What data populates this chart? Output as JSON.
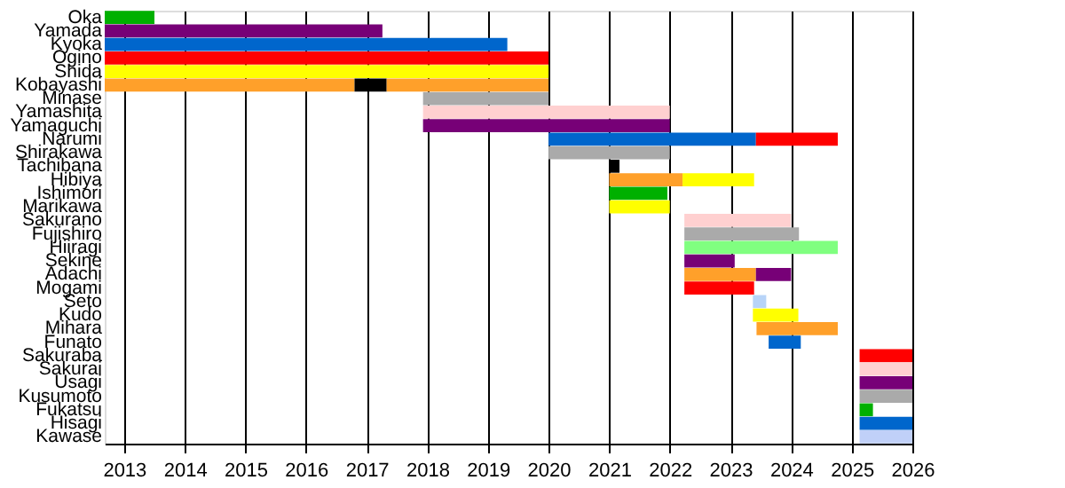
{
  "chart_data": {
    "type": "bar",
    "orientation": "horizontal",
    "categories": [
      "Oka",
      "Yamada",
      "Kyoka",
      "Ogino",
      "Shida",
      "Kobayashi",
      "Minase",
      "Yamashita",
      "Yamaguchi",
      "Narumi",
      "Shirakawa",
      "Tachibana",
      "Hibiya",
      "Ishimori",
      "Marikawa",
      "Sakurano",
      "Fujishiro",
      "Hiiragi",
      "Sekine",
      "Adachi",
      "Mogami",
      "Seto",
      "Kudo",
      "Mihara",
      "Funato",
      "Sakuraba",
      "Sakurai",
      "Usagi",
      "Kusumoto",
      "Fukatsu",
      "Hisagi",
      "Kawase"
    ],
    "series": [
      {
        "base": [
          2012.68,
          2012.68,
          2012.68,
          2012.68,
          2012.68,
          2012.68,
          2017.93,
          2017.93,
          2017.93,
          2020,
          2020,
          2021,
          2021,
          2021,
          2021,
          2022.24,
          2022.24,
          2022.24,
          2022.24,
          2022.24,
          2022.24,
          2023.37,
          2023.37,
          2023.43,
          2023.63,
          2025.13,
          2025.13,
          2025.13,
          2025.13,
          2025.13,
          2025.13,
          2025.13
        ],
        "values": [
          0.82,
          4.58,
          6.64,
          7.32,
          7.32,
          4.12,
          2.07,
          4.07,
          4.07,
          3.42,
          2,
          0.17,
          1.21,
          0.96,
          1,
          1.76,
          1.89,
          2.53,
          0.83,
          1.18,
          1.15,
          0.22,
          0.75,
          1.34,
          0.53,
          0.87,
          0.87,
          0.87,
          0.87,
          0.22,
          0.87,
          0.87
        ],
        "colors": [
          "#00b000",
          "#770077",
          "#0066cc",
          "#ff0000",
          "#ffff00",
          "#ffa02a",
          "#aaaaaa",
          "#ffd0d0",
          "#770077",
          "#0066cc",
          "#aaaaaa",
          "#000000",
          "#ffa02a",
          "#00b000",
          "#ffff00",
          "#ffd0d0",
          "#aaaaaa",
          "#80ff80",
          "#770077",
          "#ffa02a",
          "#ff0000",
          "#b8d4f8",
          "#ffff00",
          "#ffa02a",
          "#0066cc",
          "#ff0000",
          "#ffd0d0",
          "#770077",
          "#aaaaaa",
          "#00b000",
          "#0066cc",
          "#c0d0f8"
        ]
      },
      {
        "base": [
          null,
          null,
          null,
          null,
          null,
          2016.8,
          null,
          null,
          null,
          2023.42,
          null,
          null,
          2022.21,
          null,
          null,
          null,
          null,
          null,
          null,
          2023.42,
          null,
          null,
          null,
          null,
          null,
          null,
          null,
          null,
          null,
          null,
          null,
          null
        ],
        "values": [
          null,
          null,
          null,
          null,
          null,
          0.53,
          null,
          null,
          null,
          1.35,
          null,
          null,
          1.18,
          null,
          null,
          null,
          null,
          null,
          null,
          0.58,
          null,
          null,
          null,
          null,
          null,
          null,
          null,
          null,
          null,
          null,
          null,
          null
        ],
        "colors": [
          null,
          null,
          null,
          null,
          null,
          "#000000",
          null,
          null,
          null,
          "#ff0000",
          null,
          null,
          "#ffff00",
          null,
          null,
          null,
          null,
          null,
          null,
          "#770077",
          null,
          null,
          null,
          null,
          null,
          null,
          null,
          null,
          null,
          null,
          null,
          null
        ]
      },
      {
        "base": [
          null,
          null,
          null,
          null,
          null,
          2017.33,
          null,
          null,
          null,
          null,
          null,
          null,
          null,
          null,
          null,
          null,
          null,
          null,
          null,
          null,
          null,
          null,
          null,
          null,
          null,
          null,
          null,
          null,
          null,
          null,
          null,
          null
        ],
        "values": [
          null,
          null,
          null,
          null,
          null,
          2.67,
          null,
          null,
          null,
          null,
          null,
          null,
          null,
          null,
          null,
          null,
          null,
          null,
          null,
          null,
          null,
          null,
          null,
          null,
          null,
          null,
          null,
          null,
          null,
          null,
          null,
          null
        ],
        "colors": [
          null,
          null,
          null,
          null,
          null,
          "#ffa02a",
          null,
          null,
          null,
          null,
          null,
          null,
          null,
          null,
          null,
          null,
          null,
          null,
          null,
          null,
          null,
          null,
          null,
          null,
          null,
          null,
          null,
          null,
          null,
          null,
          null,
          null
        ]
      }
    ],
    "xlim": [
      2012.68,
      2026
    ],
    "xticks": [
      2013,
      2014,
      2015,
      2016,
      2017,
      2018,
      2019,
      2020,
      2021,
      2022,
      2023,
      2024,
      2025,
      2026
    ],
    "grid": "x"
  }
}
